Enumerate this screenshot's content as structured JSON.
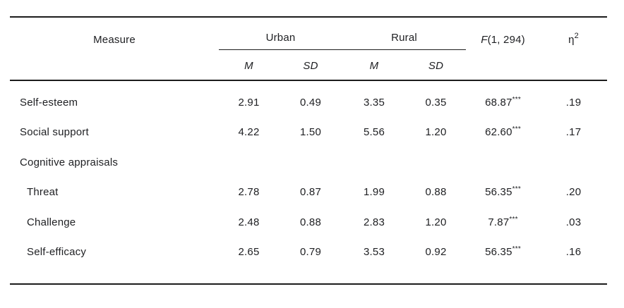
{
  "table": {
    "headers": {
      "measure": "Measure",
      "urban": "Urban",
      "rural": "Rural",
      "f_symbol": "F",
      "f_args": "(1, 294)",
      "eta_base": "η",
      "eta_sup": "2",
      "m": "M",
      "sd": "SD"
    },
    "rows": [
      {
        "label": "Self-esteem",
        "level": 0,
        "urban_m": "2.91",
        "urban_sd": "0.49",
        "rural_m": "3.35",
        "rural_sd": "0.35",
        "f": "68.87",
        "f_star": "***",
        "eta": ".19"
      },
      {
        "label": "Social support",
        "level": 0,
        "urban_m": "4.22",
        "urban_sd": "1.50",
        "rural_m": "5.56",
        "rural_sd": "1.20",
        "f": "62.60",
        "f_star": "***",
        "eta": ".17"
      },
      {
        "label": "Cognitive appraisals",
        "level": 0,
        "urban_m": "",
        "urban_sd": "",
        "rural_m": "",
        "rural_sd": "",
        "f": "",
        "f_star": "",
        "eta": ""
      },
      {
        "label": "Threat",
        "level": 1,
        "urban_m": "2.78",
        "urban_sd": "0.87",
        "rural_m": "1.99",
        "rural_sd": "0.88",
        "f": "56.35",
        "f_star": "***",
        "eta": ".20"
      },
      {
        "label": "Challenge",
        "level": 1,
        "urban_m": "2.48",
        "urban_sd": "0.88",
        "rural_m": "2.83",
        "rural_sd": "1.20",
        "f": "7.87",
        "f_star": "***",
        "eta": ".03"
      },
      {
        "label": "Self-efficacy",
        "level": 1,
        "urban_m": "2.65",
        "urban_sd": "0.79",
        "rural_m": "3.53",
        "rural_sd": "0.92",
        "f": "56.35",
        "f_star": "***",
        "eta": ".16"
      }
    ]
  },
  "colors": {
    "text": "#202124",
    "rule": "#1c1c1c",
    "background": "#ffffff"
  }
}
